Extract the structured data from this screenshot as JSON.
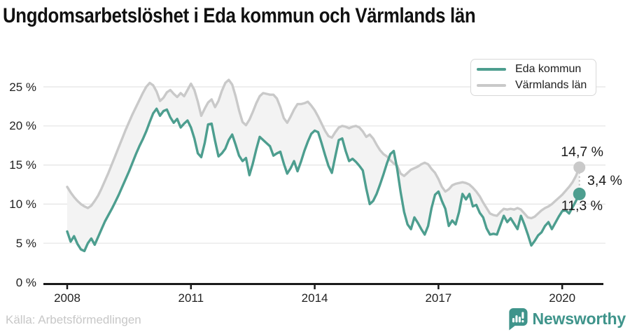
{
  "title": "Ungdomsarbetslöshet i Eda kommun och Värmlands län",
  "source": "Källa: Arbetsförmedlingen",
  "brand": "Newsworthy",
  "colors": {
    "eda": "#4D9E8F",
    "varmland": "#C9C9C9",
    "band_fill": "#F3F3F3",
    "grid": "#E4E4E4",
    "axis": "#1A1A1A",
    "tick_label": "#222222",
    "annotation": "#1A1A1A",
    "source_text": "#C7C7C7",
    "brand_teal": "#3F948B",
    "legend_border": "#D8D8D8"
  },
  "annotations": {
    "varmland_end": "14,7 %",
    "gap": "3,4 %",
    "eda_end": "11,3 %"
  },
  "chart_data": {
    "type": "line",
    "title": "Ungdomsarbetslöshet i Eda kommun och Värmlands län",
    "x_unit": "month",
    "x_start": "2008-01",
    "x_end": "2020-06",
    "x_tick_years": [
      2008,
      2011,
      2014,
      2017,
      2020
    ],
    "x_tick_labels": [
      "2008",
      "2011",
      "2014",
      "2017",
      "2020"
    ],
    "y_ticks": [
      0,
      5,
      10,
      15,
      20,
      25
    ],
    "y_tick_labels": [
      "0 %",
      "5 %",
      "10 %",
      "15 %",
      "20 %",
      "25 %"
    ],
    "ylim": [
      0,
      27
    ],
    "grid": true,
    "legend_position": "top-right",
    "band_between_series": true,
    "end_values": {
      "eda": 11.3,
      "varmland": 14.7,
      "gap": 3.4
    },
    "series": [
      {
        "name": "Eda kommun",
        "color_key": "eda",
        "end_label": "11,3 %",
        "values": [
          6.5,
          5.2,
          5.9,
          4.9,
          4.2,
          4.0,
          5.0,
          5.6,
          4.8,
          5.8,
          6.8,
          7.8,
          8.6,
          9.4,
          10.3,
          11.2,
          12.2,
          13.2,
          14.2,
          15.3,
          16.4,
          17.4,
          18.3,
          19.3,
          20.5,
          21.6,
          22.2,
          21.3,
          21.9,
          22.1,
          21.1,
          20.4,
          20.9,
          19.8,
          20.3,
          20.7,
          19.8,
          18.4,
          16.5,
          16.0,
          17.8,
          20.2,
          20.3,
          18.1,
          16.1,
          16.5,
          17.1,
          18.2,
          18.9,
          17.6,
          16.2,
          15.5,
          15.9,
          13.7,
          15.2,
          17.0,
          18.6,
          18.2,
          17.8,
          17.4,
          16.2,
          16.5,
          16.7,
          15.2,
          13.9,
          14.6,
          15.5,
          14.2,
          15.4,
          16.8,
          18.0,
          19.0,
          19.4,
          19.2,
          17.8,
          16.3,
          14.9,
          14.0,
          16.1,
          18.2,
          18.4,
          16.8,
          15.5,
          15.8,
          15.4,
          14.9,
          14.3,
          12.0,
          10.0,
          10.4,
          11.3,
          12.5,
          13.8,
          15.2,
          16.4,
          16.8,
          14.5,
          11.5,
          9.0,
          7.4,
          6.8,
          8.3,
          7.6,
          6.8,
          6.1,
          7.2,
          9.5,
          11.2,
          11.6,
          10.4,
          9.4,
          7.2,
          7.9,
          7.4,
          9.0,
          11.3,
          10.6,
          11.3,
          9.7,
          9.9,
          8.9,
          8.3,
          6.9,
          6.1,
          6.2,
          6.1,
          7.3,
          8.5,
          7.7,
          8.2,
          7.5,
          6.8,
          8.5,
          7.4,
          6.1,
          4.7,
          5.3,
          6.0,
          6.4,
          7.2,
          7.7,
          6.8,
          7.6,
          8.4,
          9.1,
          9.2,
          8.8,
          9.6,
          10.4,
          11.3
        ]
      },
      {
        "name": "Värmlands län",
        "color_key": "varmland",
        "end_label": "14,7 %",
        "values": [
          12.2,
          11.5,
          10.9,
          10.4,
          10.0,
          9.7,
          9.5,
          9.8,
          10.4,
          11.1,
          12.0,
          13.0,
          14.0,
          15.1,
          16.2,
          17.3,
          18.4,
          19.5,
          20.5,
          21.5,
          22.4,
          23.3,
          24.2,
          25.0,
          25.5,
          25.2,
          24.4,
          23.2,
          23.6,
          24.3,
          24.6,
          24.1,
          23.7,
          24.2,
          23.8,
          24.6,
          25.4,
          24.6,
          23.1,
          21.3,
          22.2,
          23.0,
          23.4,
          22.4,
          23.2,
          24.5,
          25.5,
          25.9,
          25.3,
          23.8,
          22.0,
          20.5,
          20.1,
          20.8,
          21.8,
          22.9,
          23.8,
          24.2,
          24.1,
          24.0,
          24.0,
          23.5,
          22.4,
          21.0,
          20.4,
          21.2,
          22.1,
          22.8,
          22.8,
          22.9,
          23.1,
          22.6,
          22.0,
          21.2,
          20.3,
          19.4,
          18.7,
          18.5,
          19.2,
          19.8,
          20.0,
          19.9,
          19.7,
          19.9,
          20.0,
          19.8,
          19.3,
          18.6,
          18.9,
          18.4,
          17.6,
          16.9,
          16.4,
          16.1,
          15.6,
          15.2,
          14.9,
          13.9,
          13.6,
          14.0,
          14.4,
          14.6,
          14.8,
          15.1,
          15.3,
          15.1,
          14.5,
          14.0,
          13.2,
          12.2,
          11.6,
          11.9,
          12.4,
          12.6,
          12.7,
          12.8,
          12.7,
          12.5,
          12.1,
          11.6,
          11.0,
          10.2,
          9.5,
          8.8,
          8.6,
          8.5,
          9.0,
          9.4,
          9.3,
          9.4,
          9.3,
          9.5,
          9.3,
          8.8,
          8.3,
          8.2,
          8.4,
          8.8,
          9.2,
          9.5,
          9.7,
          10.0,
          10.4,
          10.8,
          11.2,
          11.7,
          12.2,
          12.8,
          13.6,
          14.7
        ]
      }
    ]
  }
}
